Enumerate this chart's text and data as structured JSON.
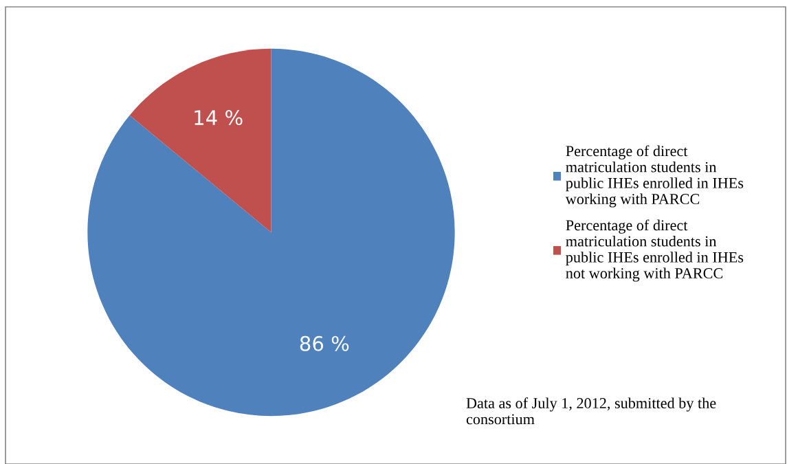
{
  "chart_data": {
    "type": "pie",
    "categories": [
      "Percentage of direct matriculation students in public IHEs enrolled in IHEs working with PARCC",
      "Percentage of direct matriculation students in public IHEs enrolled in IHEs not working with PARCC"
    ],
    "values": [
      86,
      14
    ],
    "colors": [
      "#4f81bd",
      "#c0504d"
    ],
    "value_labels": [
      "86 %",
      "14 %"
    ],
    "legend": "right",
    "annotations": [
      "Data as of July 1, 2012, submitted by the consortium"
    ]
  }
}
